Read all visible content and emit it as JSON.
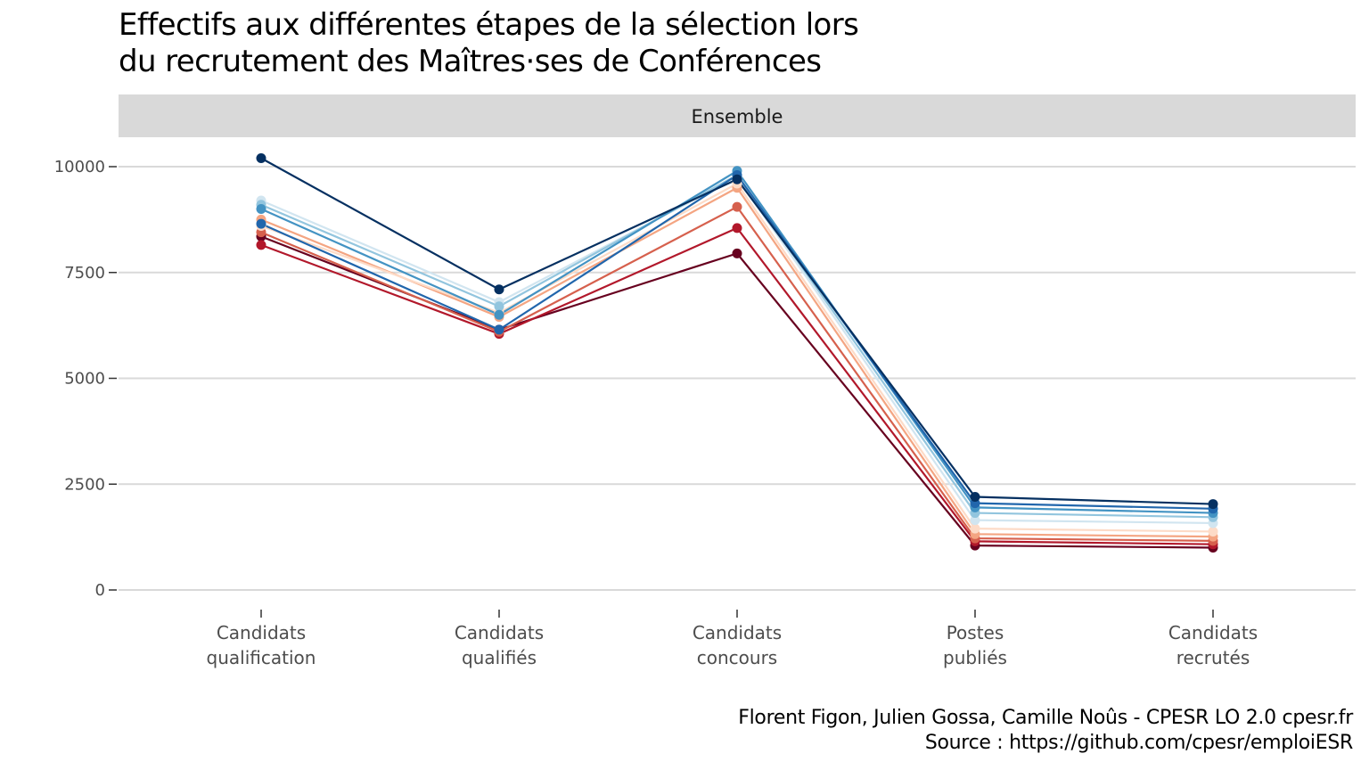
{
  "title_line1": "Effectifs aux différentes étapes de la sélection lors",
  "title_line2": "du recrutement des Maîtres·ses de Conférences",
  "caption_line1": "Florent Figon, Julien Gossa, Camille Noûs - CPESR LO 2.0 cpesr.fr",
  "caption_line2": "Source : https://github.com/cpesr/emploiESR",
  "chart_data": {
    "type": "line",
    "facet": "Ensemble",
    "categories": [
      [
        "Candidats",
        "qualification"
      ],
      [
        "Candidats",
        "qualifiés"
      ],
      [
        "Candidats",
        "concours"
      ],
      [
        "Postes",
        "publiés"
      ],
      [
        "Candidats",
        "recrutés"
      ]
    ],
    "yticks": [
      0,
      2500,
      5000,
      7500,
      10000
    ],
    "ylim": [
      0,
      10200
    ],
    "grid": true,
    "legend": "none",
    "series": [
      {
        "color": "#67001f",
        "values": [
          8350,
          6150,
          7950,
          1050,
          1000
        ]
      },
      {
        "color": "#b2182b",
        "values": [
          8150,
          6050,
          8550,
          1150,
          1080
        ]
      },
      {
        "color": "#d6604d",
        "values": [
          8450,
          6100,
          9050,
          1220,
          1160
        ]
      },
      {
        "color": "#f4a582",
        "values": [
          8750,
          6450,
          9500,
          1320,
          1260
        ]
      },
      {
        "color": "#fddbc7",
        "values": [
          8600,
          6550,
          9600,
          1450,
          1380
        ]
      },
      {
        "color": "#d1e5f0",
        "values": [
          9200,
          6800,
          9750,
          1650,
          1580
        ]
      },
      {
        "color": "#92c5de",
        "values": [
          9100,
          6700,
          9800,
          1820,
          1720
        ]
      },
      {
        "color": "#4393c3",
        "values": [
          9000,
          6500,
          9900,
          1950,
          1820
        ]
      },
      {
        "color": "#2166ac",
        "values": [
          8650,
          6150,
          9800,
          2050,
          1920
        ]
      },
      {
        "color": "#053061",
        "values": [
          10200,
          7100,
          9700,
          2200,
          2030
        ]
      }
    ]
  }
}
